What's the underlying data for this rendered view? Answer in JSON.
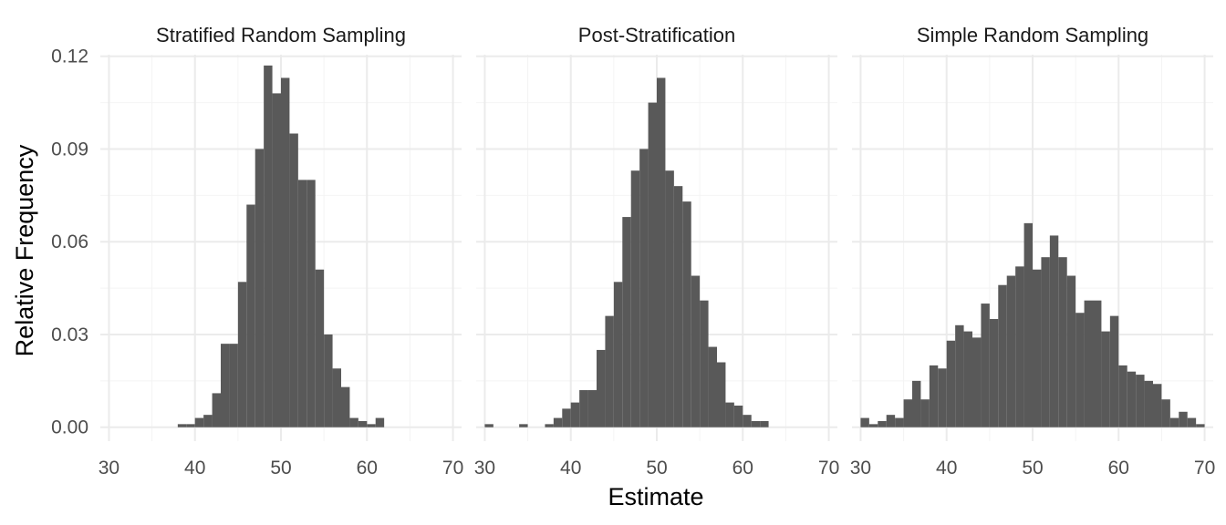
{
  "chart_data": {
    "type": "bar",
    "subtype": "histogram-faceted",
    "xlabel": "Estimate",
    "ylabel": "Relative Frequency",
    "x_ticks": [
      "30",
      "40",
      "50",
      "60",
      "70"
    ],
    "y_ticks": [
      "0.00",
      "0.03",
      "0.06",
      "0.09",
      "0.12"
    ],
    "xlim": [
      29,
      71
    ],
    "ylim": [
      -0.0045,
      0.1205
    ],
    "bin_width": 1,
    "grid": true,
    "colors": {
      "bar": "#595959",
      "grid_major": "#ebebeb",
      "grid_minor": "#f4f4f4"
    },
    "panels": [
      {
        "title": "Stratified Random Sampling",
        "bins": [
          {
            "x": 38.5,
            "y": 0.001
          },
          {
            "x": 39.5,
            "y": 0.001
          },
          {
            "x": 40.5,
            "y": 0.003
          },
          {
            "x": 41.5,
            "y": 0.004
          },
          {
            "x": 42.5,
            "y": 0.011
          },
          {
            "x": 43.5,
            "y": 0.027
          },
          {
            "x": 44.5,
            "y": 0.027
          },
          {
            "x": 45.5,
            "y": 0.047
          },
          {
            "x": 46.5,
            "y": 0.072
          },
          {
            "x": 47.5,
            "y": 0.09
          },
          {
            "x": 48.5,
            "y": 0.117
          },
          {
            "x": 49.5,
            "y": 0.108
          },
          {
            "x": 50.5,
            "y": 0.113
          },
          {
            "x": 51.5,
            "y": 0.095
          },
          {
            "x": 52.5,
            "y": 0.08
          },
          {
            "x": 53.5,
            "y": 0.08
          },
          {
            "x": 54.5,
            "y": 0.051
          },
          {
            "x": 55.5,
            "y": 0.03
          },
          {
            "x": 56.5,
            "y": 0.019
          },
          {
            "x": 57.5,
            "y": 0.013
          },
          {
            "x": 58.5,
            "y": 0.003
          },
          {
            "x": 59.5,
            "y": 0.002
          },
          {
            "x": 60.5,
            "y": 0.001
          },
          {
            "x": 61.5,
            "y": 0.003
          }
        ]
      },
      {
        "title": "Post-Stratification",
        "bins": [
          {
            "x": 30.5,
            "y": 0.001
          },
          {
            "x": 34.5,
            "y": 0.001
          },
          {
            "x": 37.5,
            "y": 0.001
          },
          {
            "x": 38.5,
            "y": 0.003
          },
          {
            "x": 39.5,
            "y": 0.006
          },
          {
            "x": 40.5,
            "y": 0.008
          },
          {
            "x": 41.5,
            "y": 0.012
          },
          {
            "x": 42.5,
            "y": 0.012
          },
          {
            "x": 43.5,
            "y": 0.025
          },
          {
            "x": 44.5,
            "y": 0.036
          },
          {
            "x": 45.5,
            "y": 0.047
          },
          {
            "x": 46.5,
            "y": 0.068
          },
          {
            "x": 47.5,
            "y": 0.083
          },
          {
            "x": 48.5,
            "y": 0.09
          },
          {
            "x": 49.5,
            "y": 0.105
          },
          {
            "x": 50.5,
            "y": 0.113
          },
          {
            "x": 51.5,
            "y": 0.083
          },
          {
            "x": 52.5,
            "y": 0.078
          },
          {
            "x": 53.5,
            "y": 0.073
          },
          {
            "x": 54.5,
            "y": 0.049
          },
          {
            "x": 55.5,
            "y": 0.041
          },
          {
            "x": 56.5,
            "y": 0.026
          },
          {
            "x": 57.5,
            "y": 0.021
          },
          {
            "x": 58.5,
            "y": 0.008
          },
          {
            "x": 59.5,
            "y": 0.007
          },
          {
            "x": 60.5,
            "y": 0.004
          },
          {
            "x": 61.5,
            "y": 0.002
          },
          {
            "x": 62.5,
            "y": 0.002
          }
        ]
      },
      {
        "title": "Simple Random Sampling",
        "bins": [
          {
            "x": 30.5,
            "y": 0.003
          },
          {
            "x": 31.5,
            "y": 0.001
          },
          {
            "x": 32.5,
            "y": 0.002
          },
          {
            "x": 33.5,
            "y": 0.004
          },
          {
            "x": 34.5,
            "y": 0.003
          },
          {
            "x": 35.5,
            "y": 0.009
          },
          {
            "x": 36.5,
            "y": 0.015
          },
          {
            "x": 37.5,
            "y": 0.009
          },
          {
            "x": 38.5,
            "y": 0.02
          },
          {
            "x": 39.5,
            "y": 0.019
          },
          {
            "x": 40.5,
            "y": 0.028
          },
          {
            "x": 41.5,
            "y": 0.033
          },
          {
            "x": 42.5,
            "y": 0.031
          },
          {
            "x": 43.5,
            "y": 0.029
          },
          {
            "x": 44.5,
            "y": 0.04
          },
          {
            "x": 45.5,
            "y": 0.035
          },
          {
            "x": 46.5,
            "y": 0.046
          },
          {
            "x": 47.5,
            "y": 0.049
          },
          {
            "x": 48.5,
            "y": 0.052
          },
          {
            "x": 49.5,
            "y": 0.066
          },
          {
            "x": 50.5,
            "y": 0.051
          },
          {
            "x": 51.5,
            "y": 0.055
          },
          {
            "x": 52.5,
            "y": 0.062
          },
          {
            "x": 53.5,
            "y": 0.055
          },
          {
            "x": 54.5,
            "y": 0.049
          },
          {
            "x": 55.5,
            "y": 0.037
          },
          {
            "x": 56.5,
            "y": 0.041
          },
          {
            "x": 57.5,
            "y": 0.041
          },
          {
            "x": 58.5,
            "y": 0.031
          },
          {
            "x": 59.5,
            "y": 0.036
          },
          {
            "x": 60.5,
            "y": 0.02
          },
          {
            "x": 61.5,
            "y": 0.018
          },
          {
            "x": 62.5,
            "y": 0.017
          },
          {
            "x": 63.5,
            "y": 0.015
          },
          {
            "x": 64.5,
            "y": 0.014
          },
          {
            "x": 65.5,
            "y": 0.009
          },
          {
            "x": 66.5,
            "y": 0.003
          },
          {
            "x": 67.5,
            "y": 0.005
          },
          {
            "x": 68.5,
            "y": 0.003
          },
          {
            "x": 69.5,
            "y": 0.001
          }
        ]
      }
    ]
  }
}
